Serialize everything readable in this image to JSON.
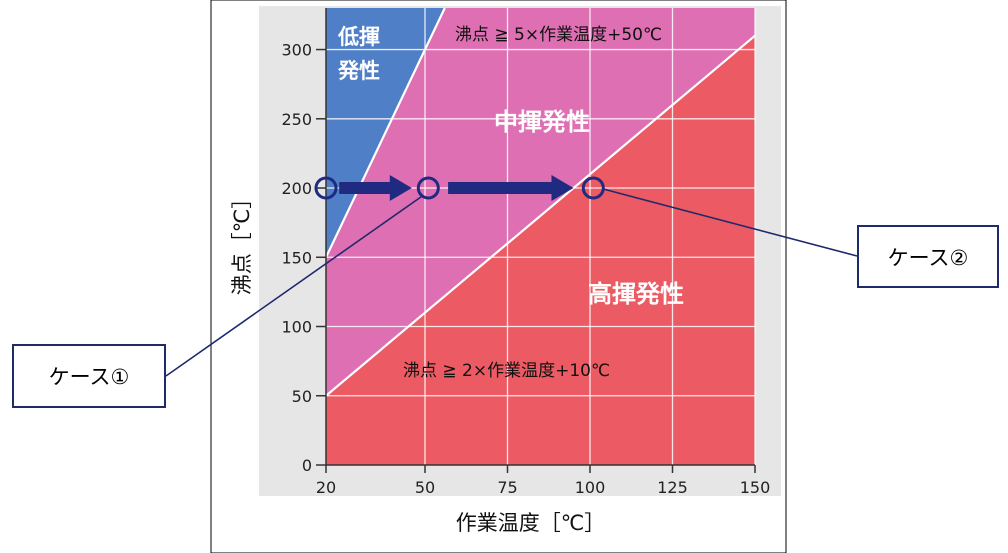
{
  "chart_data": {
    "type": "area",
    "xlabel": "作業温度［℃］",
    "ylabel": "沸点［℃］",
    "xlim": [
      20,
      150
    ],
    "ylim": [
      0,
      330
    ],
    "x_ticks": [
      20,
      50,
      75,
      100,
      125,
      150
    ],
    "y_ticks": [
      0,
      50,
      100,
      150,
      200,
      250,
      300
    ],
    "grid": true,
    "boundaries": [
      {
        "label": "沸点 ≧ 5×作業温度+50℃",
        "slope": 5,
        "intercept": 50
      },
      {
        "label": "沸点 ≧ 2×作業温度+10℃",
        "slope": 2,
        "intercept": 10
      }
    ],
    "regions": [
      {
        "label": "低揮\n発性",
        "color": "#4f7fc6"
      },
      {
        "label": "中揮発性",
        "color": "#de6fb2"
      },
      {
        "label": "高揮発性",
        "color": "#ec5a63"
      }
    ],
    "points": [
      {
        "x": 20,
        "y": 200
      },
      {
        "x": 51,
        "y": 200
      },
      {
        "x": 101,
        "y": 200
      }
    ],
    "arrows": [
      {
        "from": [
          24,
          200
        ],
        "to": [
          46,
          200
        ]
      },
      {
        "from": [
          57,
          200
        ],
        "to": [
          95,
          200
        ]
      }
    ]
  },
  "callouts": {
    "case1": "ケース①",
    "case2": "ケース②"
  },
  "colors": {
    "low": "#4f7fc6",
    "mid": "#de6fb2",
    "high": "#ec5a63",
    "marker": "#1f2a80",
    "frame": "#1f2a6d",
    "panel": "#e6e6e6"
  }
}
